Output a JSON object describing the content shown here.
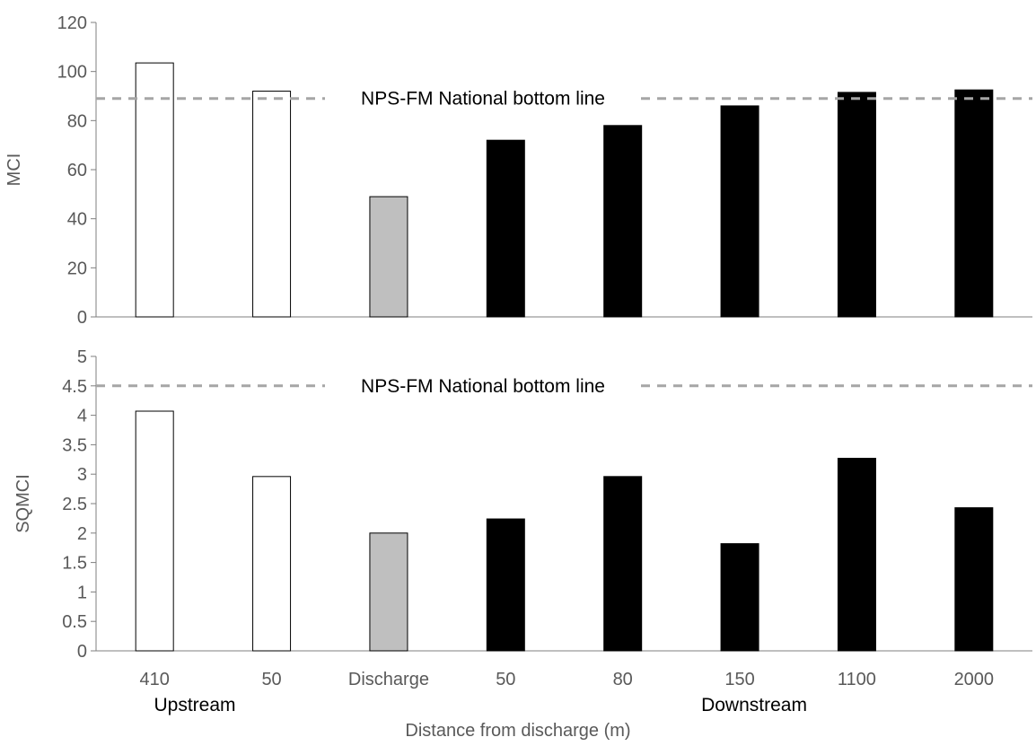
{
  "chart_data": [
    {
      "type": "bar",
      "ylabel": "MCI",
      "ylim": [
        0,
        120
      ],
      "yticks": [
        "0",
        "20",
        "40",
        "60",
        "80",
        "100",
        "120"
      ],
      "values": [
        103.5,
        92,
        49,
        72,
        78,
        86,
        91.5,
        92.5
      ],
      "reference_line": {
        "value": 89,
        "label": "NPS-FM National bottom line"
      }
    },
    {
      "type": "bar",
      "ylabel": "SQMCI",
      "ylim": [
        0,
        5
      ],
      "yticks": [
        "0",
        "0.5",
        "1",
        "1.5",
        "2",
        "2.5",
        "3",
        "3.5",
        "4",
        "4.5",
        "5"
      ],
      "values": [
        4.07,
        2.96,
        2.0,
        2.24,
        2.96,
        1.82,
        3.27,
        2.43
      ],
      "reference_line": {
        "value": 4.5,
        "label": "NPS-FM National bottom line"
      }
    }
  ],
  "categories": [
    "410",
    "50",
    "Discharge",
    "50",
    "80",
    "150",
    "1100",
    "2000"
  ],
  "bar_fills": [
    "#ffffff",
    "#ffffff",
    "#bfbfbf",
    "#000000",
    "#000000",
    "#000000",
    "#000000",
    "#000000"
  ],
  "group_labels": {
    "upstream": "Upstream",
    "downstream": "Downstream"
  },
  "xlabel": "Distance from discharge (m)",
  "colors": {
    "axis": "#7f7f7f",
    "tick_text": "#595959",
    "reference_line": "#a6a6a6",
    "bar_outline": "#000000"
  }
}
